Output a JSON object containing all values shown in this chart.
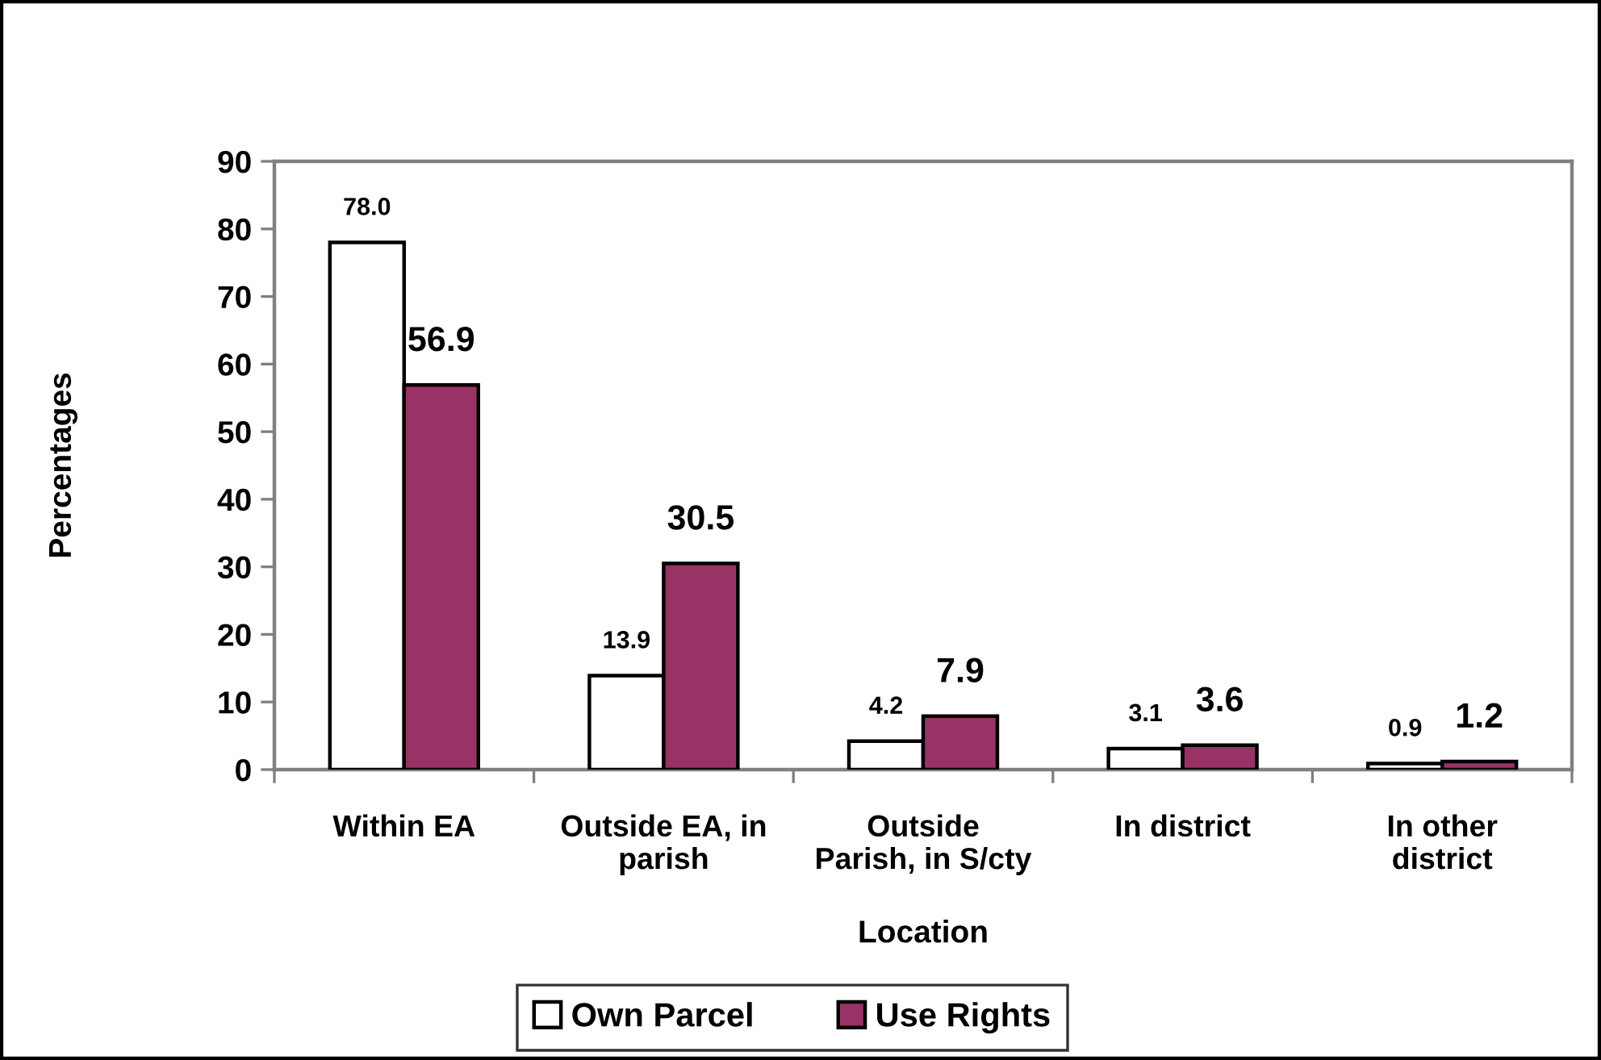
{
  "chart_data": {
    "type": "bar",
    "xlabel": "Location",
    "ylabel": "Percentages",
    "categories": [
      "Within EA",
      "Outside EA, in\nparish",
      "Outside\nParish, in S/cty",
      "In district",
      "In other\ndistrict"
    ],
    "series": [
      {
        "name": "Own Parcel",
        "color": "#ffffff",
        "values": [
          78.0,
          13.9,
          4.2,
          3.1,
          0.9
        ],
        "value_labels": [
          "78.0",
          "13.9",
          "4.2",
          "3.1",
          "0.9"
        ]
      },
      {
        "name": "Use Rights",
        "color": "#993366",
        "values": [
          56.9,
          30.5,
          7.9,
          3.6,
          1.2
        ],
        "value_labels": [
          "56.9",
          "30.5",
          "7.9",
          "3.6",
          "1.2"
        ]
      }
    ],
    "ylim": [
      0,
      90
    ],
    "yticks": [
      0,
      10,
      20,
      30,
      40,
      50,
      60,
      70,
      80,
      90
    ],
    "legend": "bottom"
  }
}
